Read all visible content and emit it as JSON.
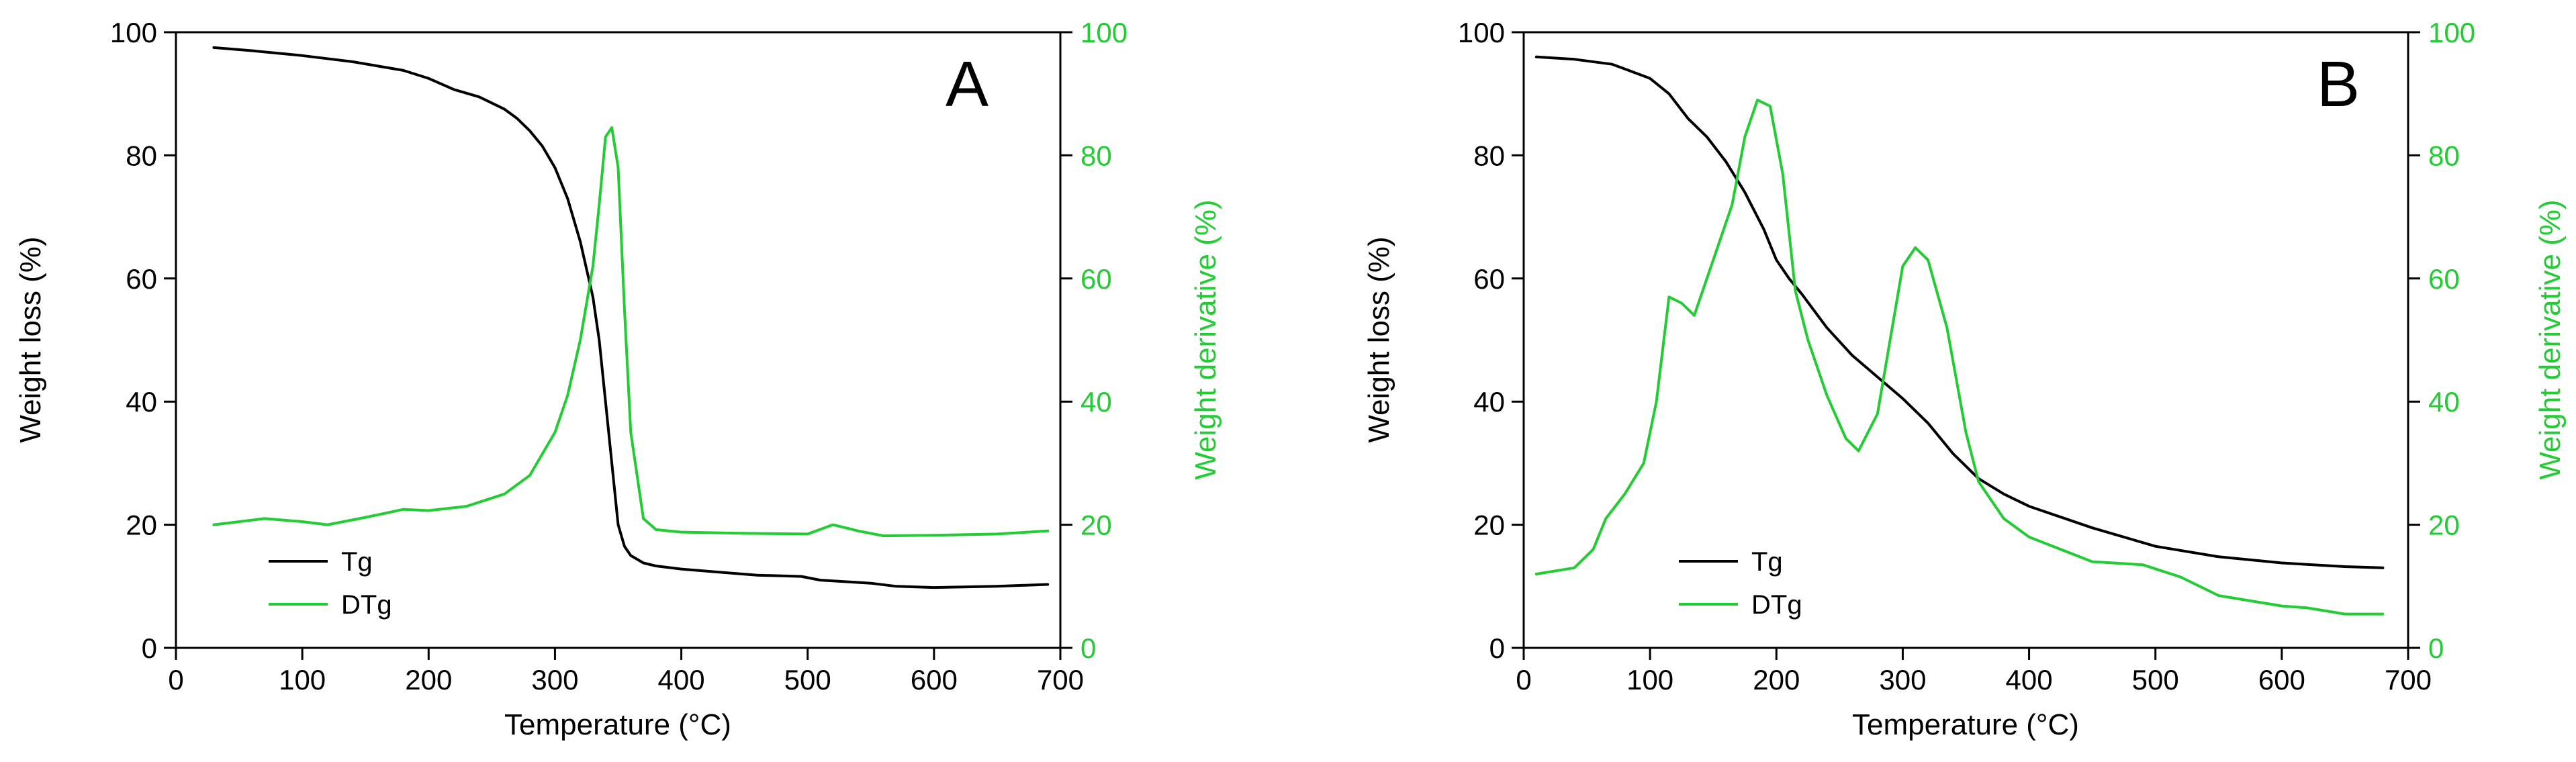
{
  "chart_data": [
    {
      "type": "line",
      "panel_label": "A",
      "xlabel": "Temperature (°C)",
      "ylabel_left": "Weight loss (%)",
      "ylabel_right": "Weight derivative (%)",
      "xlim": [
        0,
        700
      ],
      "ylim_left": [
        0,
        100
      ],
      "ylim_right": [
        0,
        100
      ],
      "x_ticks": [
        "0",
        "100",
        "200",
        "300",
        "400",
        "500",
        "600",
        "700"
      ],
      "y_ticks_left": [
        "0",
        "20",
        "40",
        "60",
        "80",
        "100"
      ],
      "y_ticks_right": [
        "0",
        "20",
        "40",
        "60",
        "80",
        "100"
      ],
      "legend": [
        "Tg",
        "DTg"
      ],
      "legend_position": "bottom-left",
      "colors": {
        "Tg": "#000000",
        "DTg": "#22cc33"
      },
      "series": [
        {
          "name": "Tg",
          "axis": "left",
          "color": "#000000",
          "x": [
            30,
            60,
            100,
            140,
            180,
            200,
            220,
            240,
            260,
            270,
            280,
            290,
            300,
            310,
            320,
            330,
            335,
            340,
            345,
            350,
            355,
            360,
            370,
            380,
            400,
            430,
            460,
            480,
            495,
            510,
            550,
            570,
            600,
            650,
            690
          ],
          "y": [
            97.5,
            97,
            96.2,
            95.2,
            93.8,
            92.5,
            90.7,
            89.5,
            87.5,
            86,
            84,
            81.5,
            78,
            73,
            66,
            57,
            50,
            40,
            30,
            20,
            16.5,
            15,
            13.8,
            13.3,
            12.8,
            12.3,
            11.8,
            11.7,
            11.6,
            11,
            10.5,
            10,
            9.8,
            10,
            10.3
          ]
        },
        {
          "name": "DTg",
          "axis": "right",
          "color": "#22cc33",
          "x": [
            30,
            70,
            100,
            120,
            150,
            180,
            200,
            230,
            260,
            280,
            300,
            310,
            320,
            330,
            335,
            340,
            345,
            350,
            355,
            360,
            365,
            370,
            380,
            400,
            450,
            500,
            520,
            540,
            560,
            600,
            650,
            690
          ],
          "y": [
            20,
            21,
            20.5,
            20,
            21.2,
            22.5,
            22.3,
            23,
            25,
            28,
            35,
            41,
            50,
            62,
            72,
            83,
            84.5,
            78,
            55,
            35,
            28,
            21,
            19.2,
            18.8,
            18.6,
            18.5,
            20,
            19,
            18.2,
            18.3,
            18.5,
            19
          ]
        }
      ]
    },
    {
      "type": "line",
      "panel_label": "B",
      "xlabel": "Temperature (°C)",
      "ylabel_left": "Weight loss (%)",
      "ylabel_right": "Weight derivative (%)",
      "xlim": [
        0,
        700
      ],
      "ylim_left": [
        0,
        100
      ],
      "ylim_right": [
        0,
        100
      ],
      "x_ticks": [
        "0",
        "100",
        "200",
        "300",
        "400",
        "500",
        "600",
        "700"
      ],
      "y_ticks_left": [
        "0",
        "20",
        "40",
        "60",
        "80",
        "100"
      ],
      "y_ticks_right": [
        "0",
        "20",
        "40",
        "60",
        "80",
        "100"
      ],
      "legend": [
        "Tg",
        "DTg"
      ],
      "legend_position": "bottom-left",
      "colors": {
        "Tg": "#000000",
        "DTg": "#22cc33"
      },
      "series": [
        {
          "name": "Tg",
          "axis": "left",
          "color": "#000000",
          "x": [
            10,
            40,
            70,
            100,
            115,
            130,
            145,
            160,
            175,
            190,
            200,
            210,
            220,
            240,
            260,
            280,
            300,
            320,
            340,
            360,
            380,
            400,
            450,
            500,
            550,
            600,
            650,
            680
          ],
          "y": [
            96,
            95.6,
            94.8,
            92.5,
            90,
            86,
            83,
            79,
            74,
            68,
            63,
            60,
            57.5,
            52,
            47.5,
            44,
            40.5,
            36.5,
            31.5,
            27.5,
            25,
            23,
            19.5,
            16.5,
            14.8,
            13.8,
            13.2,
            13
          ]
        },
        {
          "name": "DTg",
          "axis": "right",
          "color": "#22cc33",
          "x": [
            10,
            40,
            55,
            65,
            80,
            95,
            105,
            115,
            125,
            135,
            145,
            155,
            165,
            175,
            185,
            195,
            205,
            215,
            225,
            240,
            255,
            265,
            280,
            290,
            300,
            310,
            320,
            335,
            350,
            360,
            380,
            400,
            450,
            490,
            520,
            550,
            600,
            620,
            650,
            680
          ],
          "y": [
            12,
            13,
            16,
            21,
            25,
            30,
            40,
            57,
            56,
            54,
            60,
            66,
            72,
            83,
            89,
            88,
            77,
            58,
            50,
            41,
            34,
            32,
            38,
            50,
            62,
            65,
            63,
            52,
            35,
            27,
            21,
            18,
            14,
            13.5,
            11.5,
            8.5,
            6.8,
            6.5,
            5.5,
            5.5
          ]
        }
      ]
    }
  ]
}
